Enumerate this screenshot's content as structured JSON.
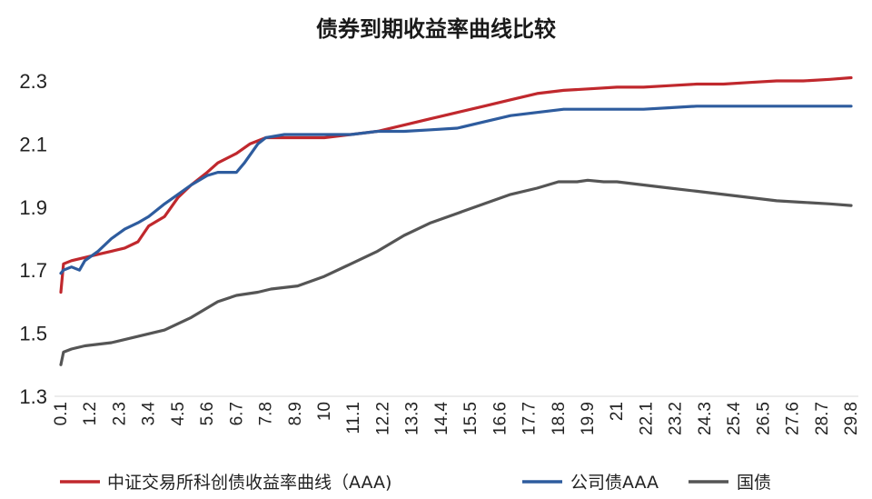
{
  "chart_data": {
    "type": "line",
    "title": "债券到期收益率曲线比较",
    "xlabel": "",
    "ylabel": "",
    "ylim": [
      1.3,
      2.3
    ],
    "y_ticks": [
      "1.3",
      "1.5",
      "1.7",
      "1.9",
      "2.1",
      "2.3"
    ],
    "x_ticks": [
      "0.1",
      "1.2",
      "2.3",
      "3.4",
      "4.5",
      "5.6",
      "6.7",
      "7.8",
      "8.9",
      "10",
      "11.1",
      "12.2",
      "13.3",
      "14.4",
      "15.5",
      "16.6",
      "17.7",
      "18.8",
      "19.9",
      "21",
      "22.1",
      "23.2",
      "24.3",
      "25.4",
      "26.5",
      "27.6",
      "28.7",
      "29.8"
    ],
    "xlim": [
      0.1,
      29.8
    ],
    "grid": false,
    "legend_position": "bottom",
    "series": [
      {
        "name": "中证交易所科创债收益率曲线（AAA)",
        "color": "#c0282d",
        "x": [
          0.1,
          0.2,
          0.5,
          1,
          1.5,
          2,
          2.5,
          3,
          3.4,
          4,
          4.5,
          5,
          5.6,
          6,
          6.7,
          7.2,
          7.8,
          8.5,
          9,
          10,
          11,
          12,
          13,
          14,
          15,
          16,
          17,
          18,
          19,
          20,
          21,
          22,
          23,
          24,
          25,
          26,
          27,
          28,
          29,
          29.8
        ],
        "values": [
          1.63,
          1.72,
          1.73,
          1.74,
          1.75,
          1.76,
          1.77,
          1.79,
          1.84,
          1.87,
          1.93,
          1.97,
          2.01,
          2.04,
          2.07,
          2.1,
          2.12,
          2.12,
          2.12,
          2.12,
          2.13,
          2.14,
          2.16,
          2.18,
          2.2,
          2.22,
          2.24,
          2.26,
          2.27,
          2.275,
          2.28,
          2.28,
          2.285,
          2.29,
          2.29,
          2.295,
          2.3,
          2.3,
          2.305,
          2.31
        ]
      },
      {
        "name": "公司债AAA",
        "color": "#2e5c9e",
        "x": [
          0.1,
          0.2,
          0.5,
          0.8,
          1,
          1.5,
          2,
          2.5,
          3,
          3.4,
          4,
          4.5,
          5,
          5.6,
          6,
          6.7,
          7,
          7.5,
          7.8,
          8.5,
          9,
          10,
          11,
          12,
          13,
          14,
          15,
          16,
          17,
          18,
          19,
          20,
          21,
          22,
          23,
          24,
          25,
          26,
          27,
          28,
          29,
          29.8
        ],
        "values": [
          1.69,
          1.7,
          1.71,
          1.7,
          1.73,
          1.76,
          1.8,
          1.83,
          1.85,
          1.87,
          1.91,
          1.94,
          1.97,
          2.0,
          2.01,
          2.01,
          2.04,
          2.1,
          2.12,
          2.13,
          2.13,
          2.13,
          2.13,
          2.14,
          2.14,
          2.145,
          2.15,
          2.17,
          2.19,
          2.2,
          2.21,
          2.21,
          2.21,
          2.21,
          2.215,
          2.22,
          2.22,
          2.22,
          2.22,
          2.22,
          2.22,
          2.22
        ]
      },
      {
        "name": "国债",
        "color": "#555555",
        "x": [
          0.1,
          0.2,
          0.5,
          1,
          2,
          3,
          4,
          5,
          6,
          6.7,
          7.5,
          8,
          9,
          10,
          11,
          12,
          13,
          14,
          15,
          16,
          17,
          18,
          18.8,
          19.5,
          19.9,
          20.5,
          21,
          22,
          23,
          24,
          25,
          26,
          27,
          28,
          29,
          29.8
        ],
        "values": [
          1.4,
          1.44,
          1.45,
          1.46,
          1.47,
          1.49,
          1.51,
          1.55,
          1.6,
          1.62,
          1.63,
          1.64,
          1.65,
          1.68,
          1.72,
          1.76,
          1.81,
          1.85,
          1.88,
          1.91,
          1.94,
          1.96,
          1.98,
          1.98,
          1.985,
          1.98,
          1.98,
          1.97,
          1.96,
          1.95,
          1.94,
          1.93,
          1.92,
          1.915,
          1.91,
          1.905
        ]
      }
    ]
  }
}
